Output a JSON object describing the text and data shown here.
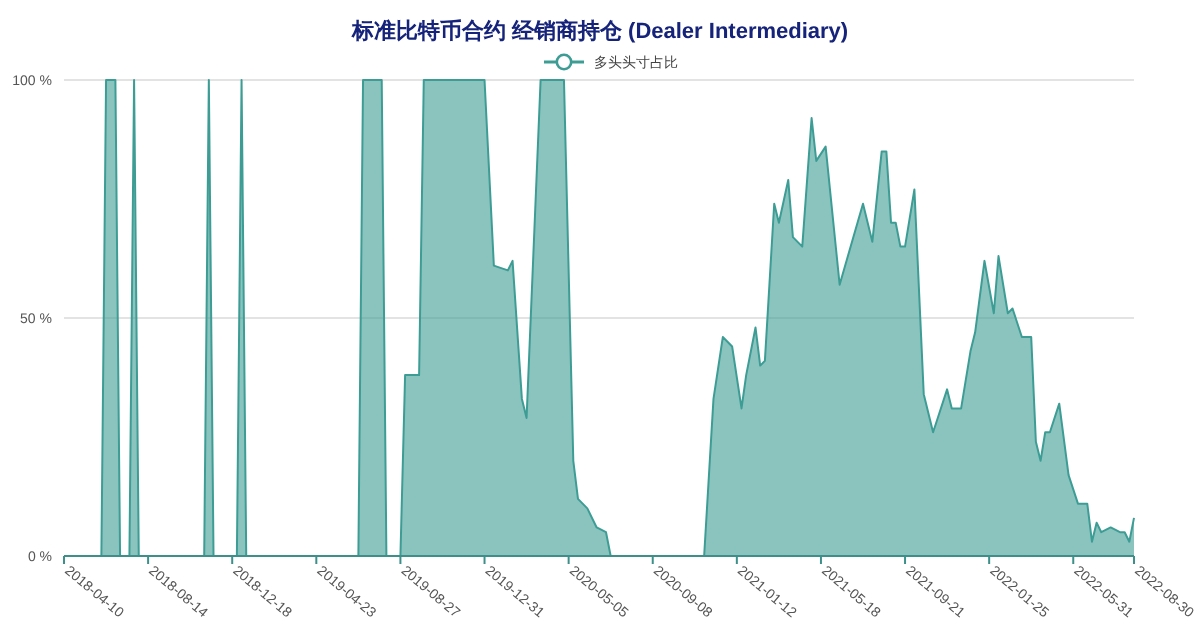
{
  "chart_data": {
    "type": "area",
    "title": "标准比特币合约 经销商持仓 (Dealer Intermediary)",
    "series": [
      {
        "name": "多头头寸占比",
        "color": "#3d9d95",
        "x": [
          "2018-04-10",
          "2018-06-05",
          "2018-06-12",
          "2018-06-26",
          "2018-07-03",
          "2018-07-17",
          "2018-07-24",
          "2018-07-31",
          "2018-11-06",
          "2018-11-13",
          "2018-11-20",
          "2018-12-25",
          "2019-01-01",
          "2019-01-08",
          "2019-06-25",
          "2019-07-02",
          "2019-07-30",
          "2019-08-06",
          "2019-08-27",
          "2019-09-03",
          "2019-09-24",
          "2019-10-01",
          "2019-12-31",
          "2020-01-14",
          "2020-02-04",
          "2020-02-11",
          "2020-02-25",
          "2020-03-03",
          "2020-03-24",
          "2020-04-28",
          "2020-05-12",
          "2020-05-19",
          "2020-06-02",
          "2020-06-16",
          "2020-06-30",
          "2020-07-07",
          "2020-11-24",
          "2020-12-08",
          "2020-12-22",
          "2021-01-05",
          "2021-01-19",
          "2021-01-26",
          "2021-02-09",
          "2021-02-16",
          "2021-02-23",
          "2021-03-09",
          "2021-03-16",
          "2021-03-30",
          "2021-04-06",
          "2021-04-20",
          "2021-05-04",
          "2021-05-11",
          "2021-05-25",
          "2021-06-15",
          "2021-07-20",
          "2021-08-03",
          "2021-08-17",
          "2021-08-24",
          "2021-08-31",
          "2021-09-07",
          "2021-09-14",
          "2021-09-21",
          "2021-10-05",
          "2021-10-19",
          "2021-11-02",
          "2021-11-09",
          "2021-11-23",
          "2021-11-30",
          "2021-12-14",
          "2021-12-28",
          "2022-01-04",
          "2022-01-18",
          "2022-02-01",
          "2022-02-08",
          "2022-02-22",
          "2022-03-01",
          "2022-03-08",
          "2022-03-15",
          "2022-03-29",
          "2022-04-05",
          "2022-04-12",
          "2022-04-19",
          "2022-04-26",
          "2022-05-10",
          "2022-05-24",
          "2022-06-07",
          "2022-06-21",
          "2022-06-28",
          "2022-07-05",
          "2022-07-12",
          "2022-07-26",
          "2022-08-09",
          "2022-08-16",
          "2022-08-23",
          "2022-08-30"
        ],
        "values": [
          0,
          0,
          100,
          100,
          0,
          0,
          100,
          0,
          0,
          100,
          0,
          0,
          100,
          0,
          0,
          100,
          100,
          0,
          0,
          38,
          38,
          100,
          100,
          61,
          60,
          62,
          33,
          29,
          100,
          100,
          20,
          12,
          10,
          6,
          5,
          0,
          0,
          33,
          46,
          44,
          31,
          38,
          48,
          40,
          41,
          74,
          70,
          79,
          67,
          65,
          92,
          83,
          86,
          57,
          74,
          66,
          85,
          85,
          70,
          70,
          65,
          65,
          77,
          34,
          26,
          29,
          35,
          31,
          31,
          43,
          47,
          62,
          51,
          63,
          51,
          52,
          49,
          46,
          46,
          24,
          20,
          26,
          26,
          32,
          17,
          11,
          11,
          3,
          7,
          5,
          6,
          5,
          5,
          3,
          8
        ]
      }
    ],
    "xlim": [
      "2018-04-10",
      "2022-08-30"
    ],
    "xticks": [
      "2018-04-10",
      "2018-08-14",
      "2018-12-18",
      "2019-04-23",
      "2019-08-27",
      "2019-12-31",
      "2020-05-05",
      "2020-09-08",
      "2021-01-12",
      "2021-05-18",
      "2021-09-21",
      "2022-01-25",
      "2022-05-31",
      "2022-08-30"
    ],
    "ylim": [
      0,
      100
    ],
    "yticks": [
      {
        "value": 0,
        "label": "0 %"
      },
      {
        "value": 50,
        "label": "50 %"
      },
      {
        "value": 100,
        "label": "100 %"
      }
    ],
    "grid": "y",
    "legend": "top"
  }
}
